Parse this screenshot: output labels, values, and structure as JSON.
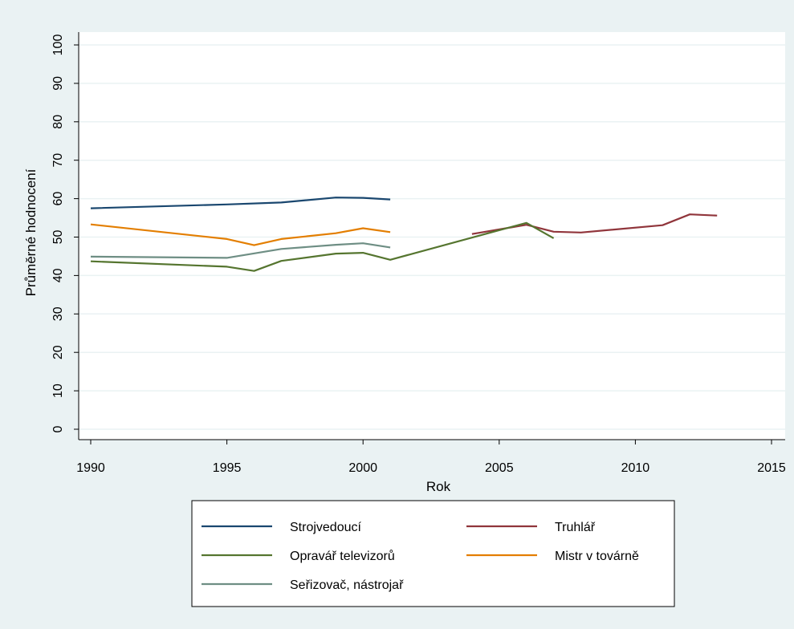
{
  "chart_data": {
    "type": "line",
    "title": "",
    "xlabel": "Rok",
    "ylabel": "Průměrné hodnocení",
    "xlim": [
      1990,
      2015
    ],
    "ylim": [
      0,
      100
    ],
    "xticks": [
      1990,
      1995,
      2000,
      2005,
      2010,
      2015
    ],
    "yticks": [
      0,
      10,
      20,
      30,
      40,
      50,
      60,
      70,
      80,
      90,
      100
    ],
    "grid": true,
    "legend_position": "bottom",
    "series": [
      {
        "name": "Strojvedoucí",
        "color": "#1a476f",
        "points": [
          [
            1990,
            57.5
          ],
          [
            1995,
            58.5
          ],
          [
            1997,
            59.0
          ],
          [
            1999,
            60.3
          ],
          [
            2000,
            60.2
          ],
          [
            2001,
            59.8
          ]
        ]
      },
      {
        "name": "Truhlář",
        "color": "#90353b",
        "points": [
          [
            2004,
            50.8
          ],
          [
            2006,
            53.2
          ],
          [
            2007,
            51.4
          ],
          [
            2008,
            51.2
          ],
          [
            2011,
            53.1
          ],
          [
            2012,
            55.9
          ],
          [
            2013,
            55.6
          ]
        ]
      },
      {
        "name": "Opravář televizorů",
        "color": "#55752f",
        "points": [
          [
            1990,
            43.7
          ],
          [
            1995,
            42.3
          ],
          [
            1996,
            41.2
          ],
          [
            1997,
            43.8
          ],
          [
            1999,
            45.7
          ],
          [
            2000,
            45.9
          ],
          [
            2001,
            44.1
          ],
          [
            2005,
            51.8
          ],
          [
            2006,
            53.7
          ],
          [
            2007,
            49.7
          ]
        ]
      },
      {
        "name": "Mistr v továrně",
        "color": "#e37e00",
        "points": [
          [
            1990,
            53.3
          ],
          [
            1995,
            49.5
          ],
          [
            1996,
            47.9
          ],
          [
            1997,
            49.5
          ],
          [
            1999,
            51.0
          ],
          [
            2000,
            52.3
          ],
          [
            2001,
            51.3
          ]
        ]
      },
      {
        "name": "Seřizovač, nástrojař",
        "color": "#6e8e84",
        "points": [
          [
            1990,
            44.9
          ],
          [
            1995,
            44.6
          ],
          [
            1997,
            46.9
          ],
          [
            1999,
            48.0
          ],
          [
            2000,
            48.4
          ],
          [
            2001,
            47.3
          ]
        ]
      }
    ]
  }
}
